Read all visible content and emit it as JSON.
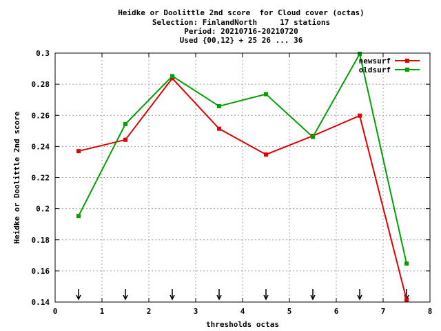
{
  "chart_data": {
    "type": "line",
    "title_lines": [
      "Heidke or Doolittle 2nd score  for Cloud cover (octas)",
      "Selection: FinlandNorth     17 stations",
      "Period: 20210716-20210720",
      "Used {00,12} + 25 26 ... 36"
    ],
    "xlabel": "thresholds octas",
    "ylabel": "Heidke or Doolittle 2nd score",
    "xlim": [
      0,
      8
    ],
    "ylim": [
      0.14,
      0.3
    ],
    "x_ticks": [
      "0",
      "1",
      "2",
      "3",
      "4",
      "5",
      "6",
      "7",
      "8"
    ],
    "y_ticks": [
      "0.14",
      "0.16",
      "0.18",
      "0.2",
      "0.22",
      "0.24",
      "0.26",
      "0.28",
      "0.3"
    ],
    "grid": true,
    "legend_position": "top-right",
    "x": [
      0.5,
      1.5,
      2.5,
      3.5,
      4.5,
      5.5,
      6.5,
      7.5
    ],
    "series": [
      {
        "name": "newsurf",
        "color": "#e00000",
        "values": [
          0.237,
          0.2443,
          0.2838,
          0.2514,
          0.2348,
          0.2468,
          0.2598,
          0.1415
        ]
      },
      {
        "name": "oldsurf",
        "color": "#00a000",
        "values": [
          0.1953,
          0.2544,
          0.2852,
          0.2659,
          0.2736,
          0.2461,
          0.2995,
          0.1647
        ]
      }
    ],
    "arrow_markers_x": [
      0.5,
      1.5,
      2.5,
      3.5,
      4.5,
      5.5,
      6.5,
      7.5
    ]
  }
}
